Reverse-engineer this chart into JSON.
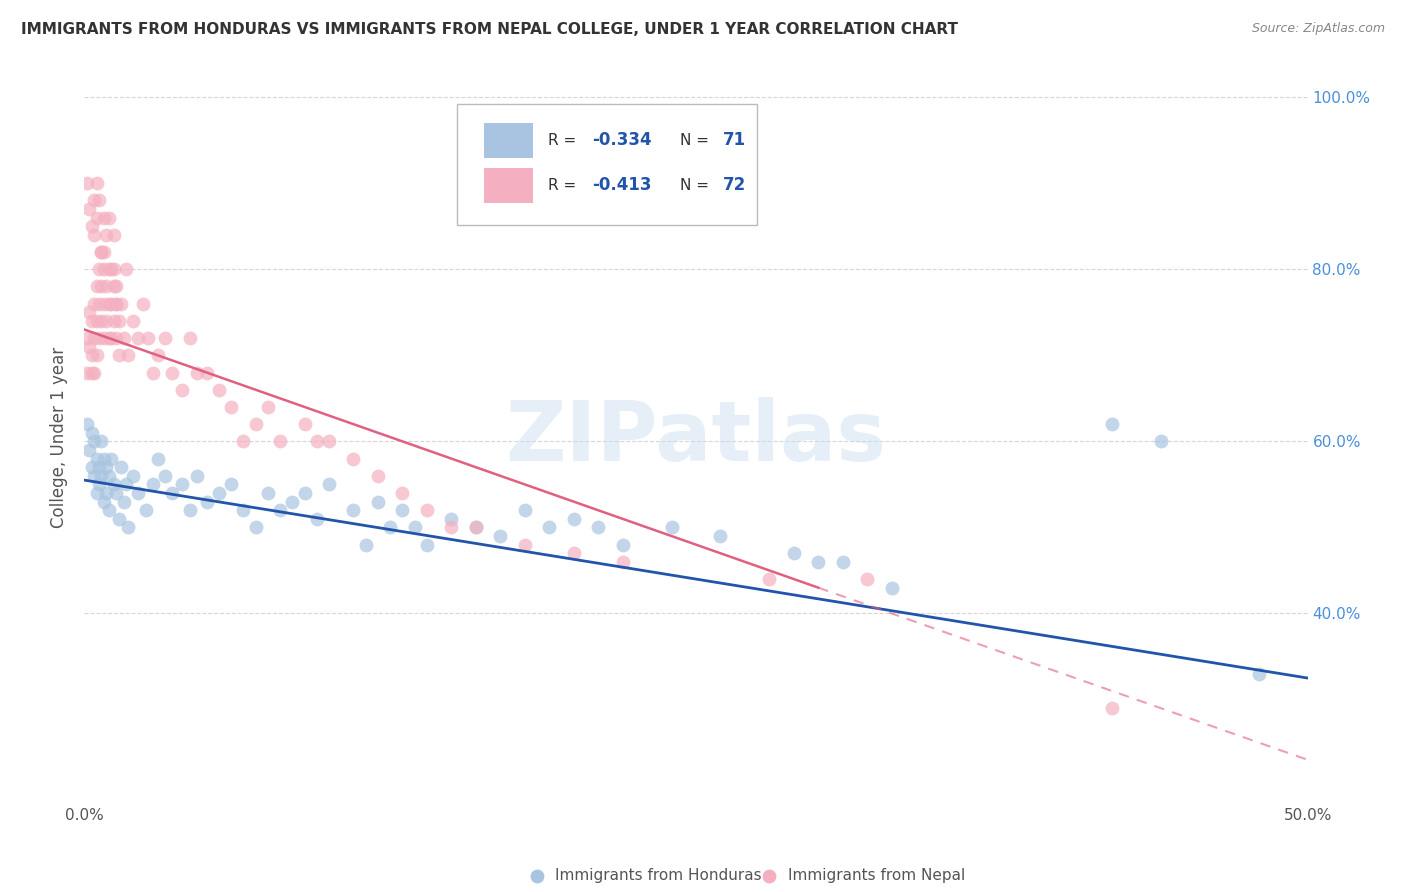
{
  "title": "IMMIGRANTS FROM HONDURAS VS IMMIGRANTS FROM NEPAL COLLEGE, UNDER 1 YEAR CORRELATION CHART",
  "source": "Source: ZipAtlas.com",
  "ylabel": "College, Under 1 year",
  "xmin": 0.0,
  "xmax": 0.5,
  "ymin": 0.18,
  "ymax": 1.03,
  "xticks": [
    0.0,
    0.1,
    0.2,
    0.3,
    0.4,
    0.5
  ],
  "xtick_labels": [
    "0.0%",
    "",
    "",
    "",
    "",
    "50.0%"
  ],
  "yticks": [
    0.4,
    0.6,
    0.8,
    1.0
  ],
  "ytick_labels": [
    "40.0%",
    "60.0%",
    "80.0%",
    "100.0%"
  ],
  "legend_honduras_r": "-0.334",
  "legend_honduras_n": "71",
  "legend_nepal_r": "-0.413",
  "legend_nepal_n": "72",
  "watermark": "ZIPatlas",
  "honduras_color": "#a8c4e0",
  "nepal_color": "#f4b0c0",
  "honduras_line_color": "#2255aa",
  "nepal_line_color": "#e06080",
  "background_color": "#ffffff",
  "grid_color": "#cccccc",
  "honduras_x": [
    0.001,
    0.002,
    0.003,
    0.003,
    0.004,
    0.004,
    0.005,
    0.005,
    0.006,
    0.006,
    0.007,
    0.007,
    0.008,
    0.008,
    0.009,
    0.009,
    0.01,
    0.01,
    0.011,
    0.012,
    0.013,
    0.014,
    0.015,
    0.016,
    0.017,
    0.018,
    0.02,
    0.022,
    0.025,
    0.028,
    0.03,
    0.033,
    0.036,
    0.04,
    0.043,
    0.046,
    0.05,
    0.055,
    0.06,
    0.065,
    0.07,
    0.075,
    0.08,
    0.085,
    0.09,
    0.095,
    0.1,
    0.11,
    0.115,
    0.12,
    0.125,
    0.13,
    0.135,
    0.14,
    0.15,
    0.16,
    0.17,
    0.18,
    0.19,
    0.2,
    0.21,
    0.22,
    0.24,
    0.26,
    0.29,
    0.3,
    0.31,
    0.33,
    0.42,
    0.44,
    0.48
  ],
  "honduras_y": [
    0.62,
    0.59,
    0.61,
    0.57,
    0.6,
    0.56,
    0.58,
    0.54,
    0.57,
    0.55,
    0.6,
    0.56,
    0.58,
    0.53,
    0.57,
    0.54,
    0.56,
    0.52,
    0.58,
    0.55,
    0.54,
    0.51,
    0.57,
    0.53,
    0.55,
    0.5,
    0.56,
    0.54,
    0.52,
    0.55,
    0.58,
    0.56,
    0.54,
    0.55,
    0.52,
    0.56,
    0.53,
    0.54,
    0.55,
    0.52,
    0.5,
    0.54,
    0.52,
    0.53,
    0.54,
    0.51,
    0.55,
    0.52,
    0.48,
    0.53,
    0.5,
    0.52,
    0.5,
    0.48,
    0.51,
    0.5,
    0.49,
    0.52,
    0.5,
    0.51,
    0.5,
    0.48,
    0.5,
    0.49,
    0.47,
    0.46,
    0.46,
    0.43,
    0.62,
    0.6,
    0.33
  ],
  "nepal_x": [
    0.001,
    0.001,
    0.002,
    0.002,
    0.003,
    0.003,
    0.003,
    0.004,
    0.004,
    0.004,
    0.005,
    0.005,
    0.005,
    0.006,
    0.006,
    0.006,
    0.007,
    0.007,
    0.007,
    0.008,
    0.008,
    0.008,
    0.009,
    0.009,
    0.01,
    0.01,
    0.01,
    0.011,
    0.011,
    0.012,
    0.012,
    0.013,
    0.013,
    0.014,
    0.014,
    0.015,
    0.016,
    0.017,
    0.018,
    0.02,
    0.022,
    0.024,
    0.026,
    0.028,
    0.03,
    0.033,
    0.036,
    0.04,
    0.043,
    0.046,
    0.05,
    0.055,
    0.06,
    0.065,
    0.07,
    0.075,
    0.08,
    0.09,
    0.095,
    0.1,
    0.11,
    0.12,
    0.13,
    0.14,
    0.15,
    0.16,
    0.18,
    0.2,
    0.22,
    0.28,
    0.32,
    0.42
  ],
  "nepal_y": [
    0.72,
    0.68,
    0.75,
    0.71,
    0.74,
    0.7,
    0.68,
    0.76,
    0.72,
    0.68,
    0.78,
    0.74,
    0.7,
    0.8,
    0.76,
    0.72,
    0.82,
    0.78,
    0.74,
    0.8,
    0.76,
    0.72,
    0.78,
    0.74,
    0.8,
    0.76,
    0.72,
    0.76,
    0.72,
    0.78,
    0.74,
    0.76,
    0.72,
    0.74,
    0.7,
    0.76,
    0.72,
    0.8,
    0.7,
    0.74,
    0.72,
    0.76,
    0.72,
    0.68,
    0.7,
    0.72,
    0.68,
    0.66,
    0.72,
    0.68,
    0.68,
    0.66,
    0.64,
    0.6,
    0.62,
    0.64,
    0.6,
    0.62,
    0.6,
    0.6,
    0.58,
    0.56,
    0.54,
    0.52,
    0.5,
    0.5,
    0.48,
    0.47,
    0.46,
    0.44,
    0.44,
    0.29
  ],
  "nepal_extra_x": [
    0.001,
    0.002,
    0.003,
    0.004,
    0.004,
    0.005,
    0.005,
    0.006,
    0.007,
    0.008,
    0.008,
    0.009,
    0.01,
    0.011,
    0.012,
    0.012,
    0.013,
    0.013
  ],
  "nepal_extra_y": [
    0.9,
    0.87,
    0.85,
    0.88,
    0.84,
    0.9,
    0.86,
    0.88,
    0.82,
    0.86,
    0.82,
    0.84,
    0.86,
    0.8,
    0.84,
    0.8,
    0.76,
    0.78
  ]
}
